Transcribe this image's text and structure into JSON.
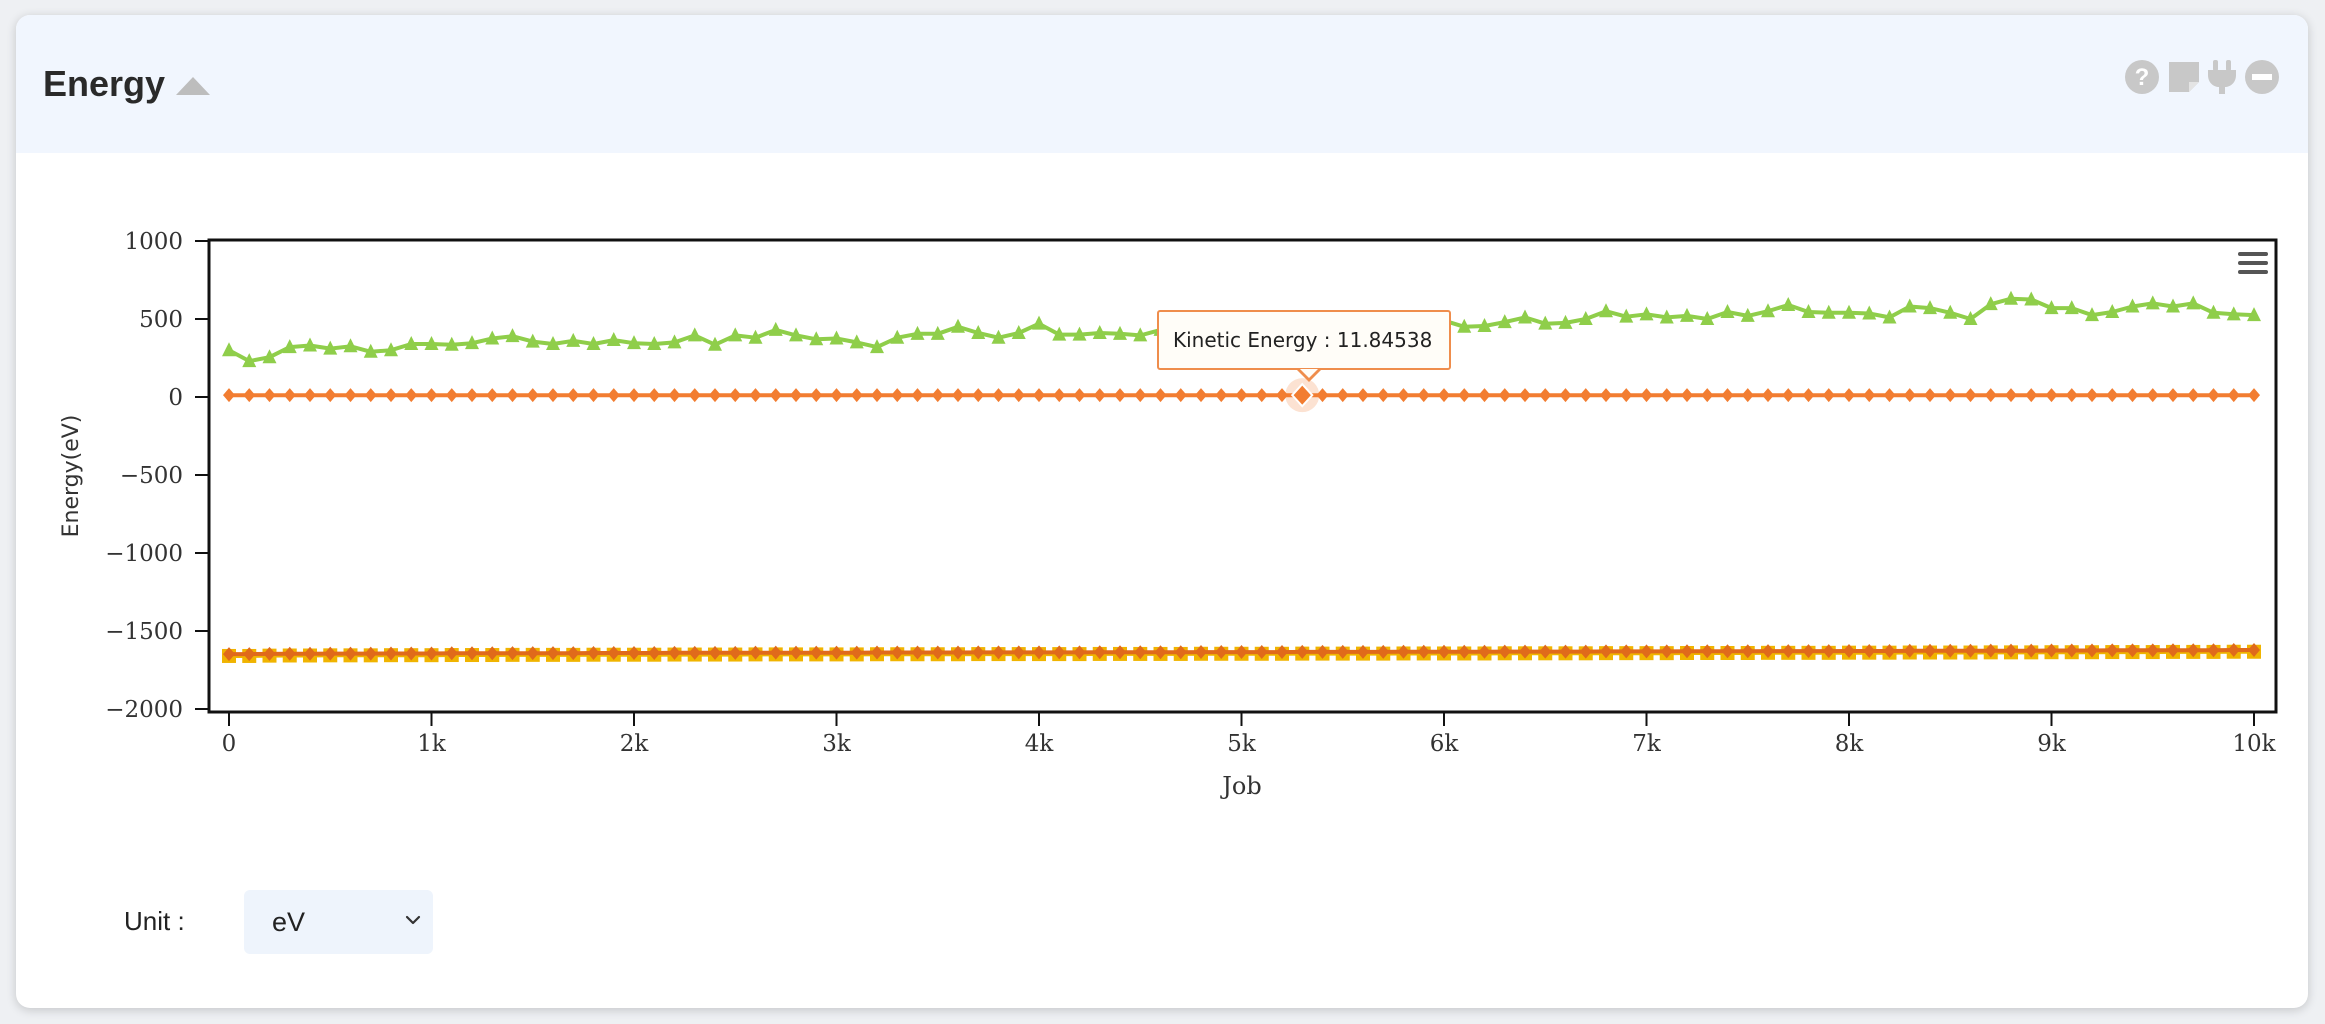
{
  "panel": {
    "title": "Energy",
    "icons": [
      "help-icon",
      "note-icon",
      "plug-icon",
      "minus-circle-icon"
    ]
  },
  "unit": {
    "label": "Unit :",
    "selected": "eV"
  },
  "tooltip": {
    "series": "Kinetic Energy",
    "value": "11.84538",
    "text": "Kinetic Energy : 11.84538"
  },
  "chart_data": {
    "type": "line",
    "title": "",
    "xlabel": "Job",
    "ylabel": "Energy(eV)",
    "xlim": [
      -100,
      10100
    ],
    "ylim": [
      -2000,
      1000
    ],
    "x_ticks": [
      0,
      1000,
      2000,
      3000,
      4000,
      5000,
      6000,
      7000,
      8000,
      9000,
      10000
    ],
    "x_tick_labels": [
      "0",
      "1k",
      "2k",
      "3k",
      "4k",
      "5k",
      "6k",
      "7k",
      "8k",
      "9k",
      "10k"
    ],
    "y_ticks": [
      1000,
      500,
      0,
      -500,
      -1000,
      -1500,
      -2000
    ],
    "y_tick_labels": [
      "1000",
      "500",
      "0",
      "−500",
      "−1000",
      "−1500",
      "−2000"
    ],
    "grid": false,
    "x": [
      0,
      100,
      200,
      300,
      400,
      500,
      600,
      700,
      800,
      900,
      1000,
      1100,
      1200,
      1300,
      1400,
      1500,
      1600,
      1700,
      1800,
      1900,
      2000,
      2100,
      2200,
      2300,
      2400,
      2500,
      2600,
      2700,
      2800,
      2900,
      3000,
      3100,
      3200,
      3300,
      3400,
      3500,
      3600,
      3700,
      3800,
      3900,
      4000,
      4100,
      4200,
      4300,
      4400,
      4500,
      4600,
      4700,
      4800,
      4900,
      5000,
      5100,
      5200,
      5300,
      5400,
      5500,
      5600,
      5700,
      5800,
      5900,
      6000,
      6100,
      6200,
      6300,
      6400,
      6500,
      6600,
      6700,
      6800,
      6900,
      7000,
      7100,
      7200,
      7300,
      7400,
      7500,
      7600,
      7700,
      7800,
      7900,
      8000,
      8100,
      8200,
      8300,
      8400,
      8500,
      8600,
      8700,
      8800,
      8900,
      9000,
      9100,
      9200,
      9300,
      9400,
      9500,
      9600,
      9700,
      9800,
      9900,
      10000
    ],
    "series": [
      {
        "name": "",
        "color": "#8fce4a",
        "marker": "triangle",
        "values": [
          300,
          230,
          255,
          320,
          330,
          310,
          325,
          290,
          300,
          340,
          340,
          335,
          345,
          375,
          390,
          355,
          340,
          360,
          340,
          365,
          345,
          340,
          350,
          395,
          335,
          395,
          380,
          430,
          395,
          370,
          375,
          350,
          320,
          380,
          405,
          405,
          450,
          410,
          380,
          410,
          470,
          400,
          400,
          410,
          405,
          395,
          430,
          440,
          475,
          480,
          470,
          460,
          470,
          470,
          450,
          490,
          470,
          480,
          490,
          500,
          490,
          450,
          455,
          480,
          510,
          470,
          475,
          500,
          550,
          515,
          530,
          510,
          520,
          500,
          545,
          520,
          550,
          590,
          545,
          540,
          540,
          535,
          510,
          580,
          570,
          540,
          500,
          595,
          630,
          625,
          570,
          570,
          525,
          545,
          580,
          600,
          580,
          600,
          540,
          530,
          525
        ]
      },
      {
        "name": "Kinetic Energy",
        "color": "#f27d31",
        "marker": "diamond",
        "values": [
          11.8,
          11.8,
          11.8,
          11.8,
          11.8,
          11.8,
          11.8,
          11.8,
          11.8,
          11.8,
          11.8,
          11.8,
          11.8,
          11.8,
          11.8,
          11.8,
          11.8,
          11.8,
          11.8,
          11.8,
          11.8,
          11.8,
          11.8,
          11.8,
          11.8,
          11.8,
          11.8,
          11.8,
          11.8,
          11.8,
          11.8,
          11.8,
          11.8,
          11.8,
          11.8,
          11.8,
          11.8,
          11.8,
          11.8,
          11.8,
          11.8,
          11.8,
          11.8,
          11.8,
          11.8,
          11.8,
          11.8,
          11.8,
          11.8,
          11.8,
          11.8,
          11.8,
          11.8,
          11.84538,
          11.8,
          11.8,
          11.8,
          11.8,
          11.8,
          11.8,
          11.8,
          11.8,
          11.8,
          11.8,
          11.8,
          11.8,
          11.8,
          11.8,
          11.8,
          11.8,
          11.8,
          11.8,
          11.8,
          11.8,
          11.8,
          11.8,
          11.8,
          11.8,
          11.8,
          11.8,
          11.8,
          11.8,
          11.8,
          11.8,
          11.8,
          11.8,
          11.8,
          11.8,
          11.8,
          11.8,
          11.8,
          11.8,
          11.8,
          11.8,
          11.8,
          11.8,
          11.8,
          11.8,
          11.8,
          11.8,
          11.8
        ]
      },
      {
        "name": "",
        "color": "#f0b400",
        "marker": "square",
        "values": [
          -1660,
          -1660,
          -1658,
          -1657,
          -1657,
          -1656,
          -1656,
          -1656,
          -1655,
          -1655,
          -1655,
          -1654,
          -1654,
          -1654,
          -1653,
          -1653,
          -1653,
          -1653,
          -1652,
          -1652,
          -1652,
          -1652,
          -1651,
          -1651,
          -1651,
          -1651,
          -1650,
          -1650,
          -1650,
          -1650,
          -1650,
          -1650,
          -1649,
          -1649,
          -1649,
          -1649,
          -1649,
          -1648,
          -1648,
          -1648,
          -1648,
          -1648,
          -1648,
          -1647,
          -1647,
          -1647,
          -1647,
          -1647,
          -1646,
          -1646,
          -1646,
          -1646,
          -1646,
          -1645,
          -1645,
          -1645,
          -1645,
          -1645,
          -1644,
          -1644,
          -1644,
          -1644,
          -1644,
          -1643,
          -1643,
          -1643,
          -1643,
          -1643,
          -1642,
          -1642,
          -1642,
          -1642,
          -1641,
          -1641,
          -1641,
          -1641,
          -1640,
          -1640,
          -1640,
          -1640,
          -1639,
          -1639,
          -1639,
          -1638,
          -1638,
          -1638,
          -1638,
          -1637,
          -1637,
          -1637,
          -1636,
          -1636,
          -1636,
          -1635,
          -1635,
          -1635,
          -1634,
          -1634,
          -1634,
          -1633,
          -1633
        ]
      },
      {
        "name": "",
        "color": "#e06a1b",
        "marker": "diamond",
        "values": [
          -1648,
          -1648,
          -1647,
          -1646,
          -1646,
          -1645,
          -1645,
          -1645,
          -1644,
          -1644,
          -1644,
          -1643,
          -1643,
          -1643,
          -1642,
          -1642,
          -1642,
          -1642,
          -1641,
          -1641,
          -1641,
          -1641,
          -1640,
          -1640,
          -1640,
          -1640,
          -1639,
          -1639,
          -1639,
          -1639,
          -1639,
          -1639,
          -1638,
          -1638,
          -1638,
          -1638,
          -1638,
          -1637,
          -1637,
          -1637,
          -1637,
          -1637,
          -1637,
          -1636,
          -1636,
          -1636,
          -1636,
          -1636,
          -1635,
          -1635,
          -1635,
          -1635,
          -1635,
          -1634,
          -1634,
          -1634,
          -1634,
          -1634,
          -1633,
          -1633,
          -1633,
          -1633,
          -1633,
          -1632,
          -1632,
          -1632,
          -1632,
          -1632,
          -1631,
          -1631,
          -1631,
          -1631,
          -1630,
          -1630,
          -1630,
          -1630,
          -1629,
          -1629,
          -1629,
          -1629,
          -1628,
          -1628,
          -1628,
          -1627,
          -1627,
          -1627,
          -1627,
          -1626,
          -1626,
          -1626,
          -1625,
          -1625,
          -1625,
          -1624,
          -1624,
          -1624,
          -1623,
          -1623,
          -1623,
          -1622,
          -1622
        ]
      }
    ],
    "highlight": {
      "series": "Kinetic Energy",
      "x": 5300,
      "y": 11.84538
    }
  }
}
